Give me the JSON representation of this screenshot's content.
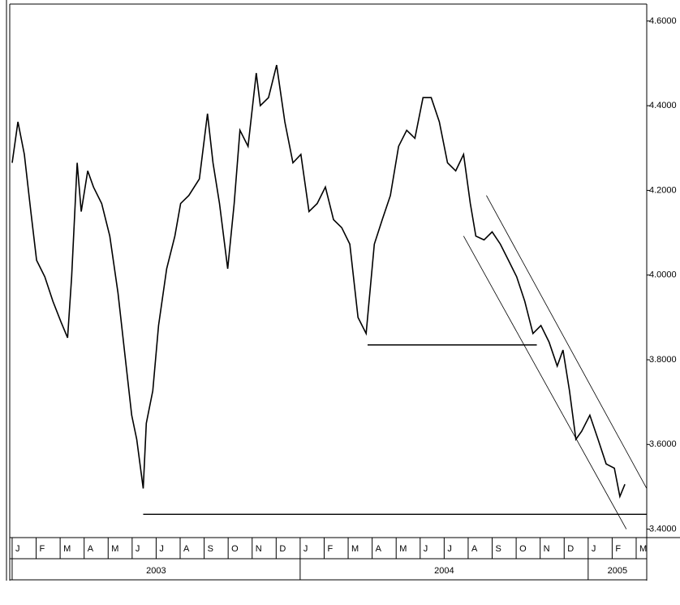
{
  "chart_data": {
    "type": "line",
    "categories": [
      "J",
      "F",
      "M",
      "A",
      "M",
      "J",
      "J",
      "A",
      "S",
      "O",
      "N",
      "D",
      "J",
      "F",
      "M",
      "A",
      "M",
      "J",
      "J",
      "A",
      "S",
      "O",
      "N",
      "D",
      "J",
      "F",
      "M"
    ],
    "years": [
      "2003",
      "2004",
      "2005"
    ],
    "xlim": [
      -0.27,
      26.27
    ],
    "ylim": [
      3.38,
      4.64
    ],
    "yticks": [
      {
        "value": 4.6,
        "label": "4.6000"
      },
      {
        "value": 4.4,
        "label": "4.4000"
      },
      {
        "value": 4.2,
        "label": "4.2000"
      },
      {
        "value": 4.0,
        "label": "4.0000"
      },
      {
        "value": 3.8,
        "label": "3.8000"
      },
      {
        "value": 3.6,
        "label": "3.6000"
      },
      {
        "value": 3.4,
        "label": "3.4000"
      }
    ],
    "series": [
      {
        "color": "#000000",
        "x": [
          -0.17,
          0.07,
          0.34,
          0.61,
          0.85,
          1.19,
          1.53,
          1.86,
          2.14,
          2.31,
          2.54,
          2.71,
          2.98,
          3.22,
          3.56,
          3.9,
          4.24,
          4.58,
          4.81,
          5.02,
          5.29,
          5.42,
          5.69,
          5.93,
          6.27,
          6.61,
          6.85,
          7.19,
          7.63,
          7.97,
          8.2,
          8.47,
          8.81,
          9.08,
          9.32,
          9.66,
          10.0,
          10.17,
          10.51,
          10.85,
          11.19,
          11.53,
          11.86,
          12.2,
          12.54,
          12.88,
          13.22,
          13.56,
          13.9,
          14.24,
          14.58,
          14.92,
          15.25,
          15.59,
          15.93,
          16.27,
          16.61,
          16.95,
          17.29,
          17.63,
          17.97,
          18.31,
          18.64,
          18.92,
          19.15,
          19.49,
          19.83,
          20.17,
          20.51,
          20.85,
          21.19,
          21.53,
          21.86,
          22.2,
          22.54,
          22.78,
          23.05,
          23.32,
          23.56,
          23.9,
          24.24,
          24.58,
          24.92,
          25.15,
          25.36
        ],
        "values": [
          4.265,
          4.362,
          4.285,
          4.15,
          4.035,
          3.996,
          3.938,
          3.89,
          3.852,
          3.996,
          4.265,
          4.15,
          4.246,
          4.208,
          4.169,
          4.092,
          3.958,
          3.785,
          3.669,
          3.612,
          3.496,
          3.65,
          3.727,
          3.881,
          4.015,
          4.092,
          4.169,
          4.188,
          4.227,
          4.381,
          4.265,
          4.169,
          4.015,
          4.169,
          4.342,
          4.304,
          4.477,
          4.4,
          4.419,
          4.496,
          4.362,
          4.265,
          4.285,
          4.15,
          4.169,
          4.208,
          4.131,
          4.112,
          4.073,
          3.9,
          3.862,
          4.073,
          4.131,
          4.188,
          4.304,
          4.342,
          4.323,
          4.419,
          4.419,
          4.362,
          4.265,
          4.246,
          4.285,
          4.169,
          4.092,
          4.083,
          4.102,
          4.073,
          4.035,
          3.996,
          3.938,
          3.862,
          3.881,
          3.842,
          3.785,
          3.823,
          3.727,
          3.612,
          3.631,
          3.669,
          3.612,
          3.554,
          3.544,
          3.477,
          3.506
        ]
      }
    ],
    "trendlines": [
      {
        "x": [
          14.64,
          21.69
        ],
        "values": [
          3.835,
          3.835
        ]
      },
      {
        "x": [
          5.29,
          26.27
        ],
        "values": [
          3.435,
          3.435
        ]
      },
      {
        "x": [
          19.59,
          26.27
        ],
        "values": [
          4.188,
          3.496
        ]
      },
      {
        "x": [
          18.64,
          25.42
        ],
        "values": [
          4.092,
          3.4
        ]
      }
    ]
  }
}
